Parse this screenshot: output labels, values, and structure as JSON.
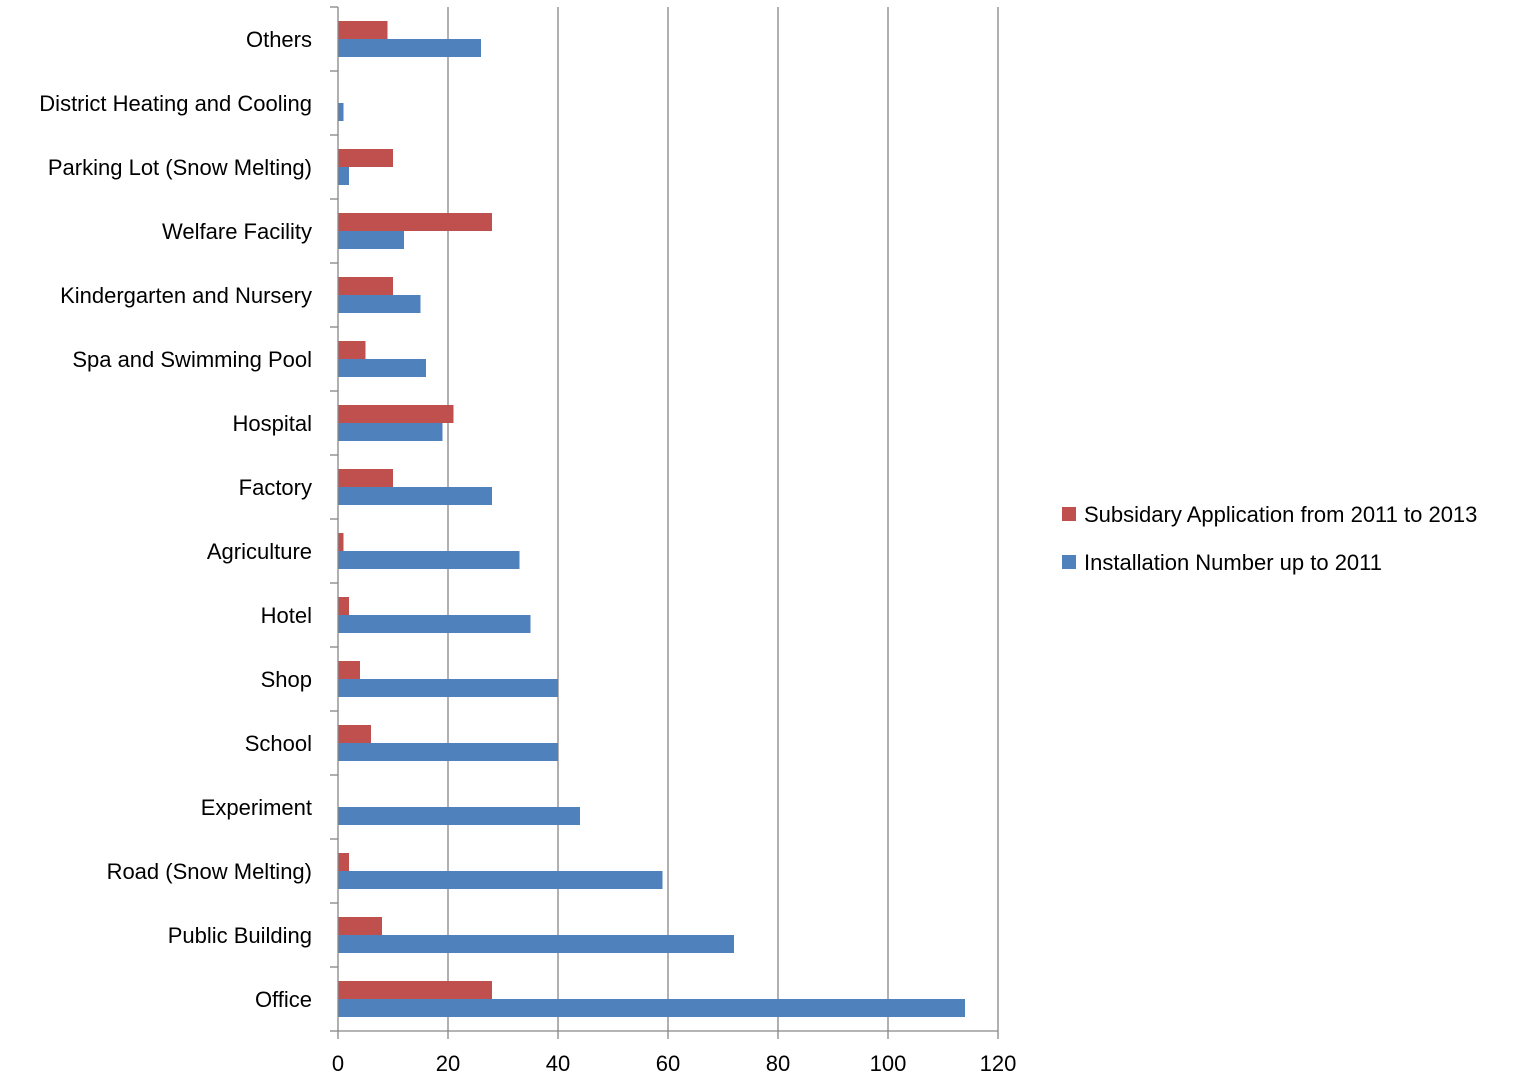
{
  "chart_data": {
    "type": "bar",
    "orientation": "horizontal",
    "title": "",
    "xlabel": "",
    "ylabel": "",
    "xlim": [
      0,
      120
    ],
    "x_ticks": [
      0,
      20,
      40,
      60,
      80,
      100,
      120
    ],
    "grid": "vertical",
    "legend_position": "right",
    "categories": [
      "Office",
      "Public Building",
      "Road (Snow Melting)",
      "Experiment",
      "School",
      "Shop",
      "Hotel",
      "Agriculture",
      "Factory",
      "Hospital",
      "Spa and Swimming Pool",
      "Kindergarten and Nursery",
      "Welfare Facility",
      "Parking Lot (Snow Melting)",
      "District Heating and Cooling",
      "Others"
    ],
    "series": [
      {
        "name": "Installation Number up to 2011",
        "color": "#4F81BD",
        "values": [
          114,
          72,
          59,
          44,
          40,
          40,
          35,
          33,
          28,
          19,
          16,
          15,
          12,
          2,
          1,
          26
        ]
      },
      {
        "name": "Subsidary Application from 2011 to 2013",
        "color": "#C0504D",
        "values": [
          28,
          8,
          2,
          0,
          6,
          4,
          2,
          1,
          10,
          21,
          5,
          10,
          28,
          10,
          0,
          9
        ]
      }
    ],
    "legend_order": [
      1,
      0
    ]
  }
}
